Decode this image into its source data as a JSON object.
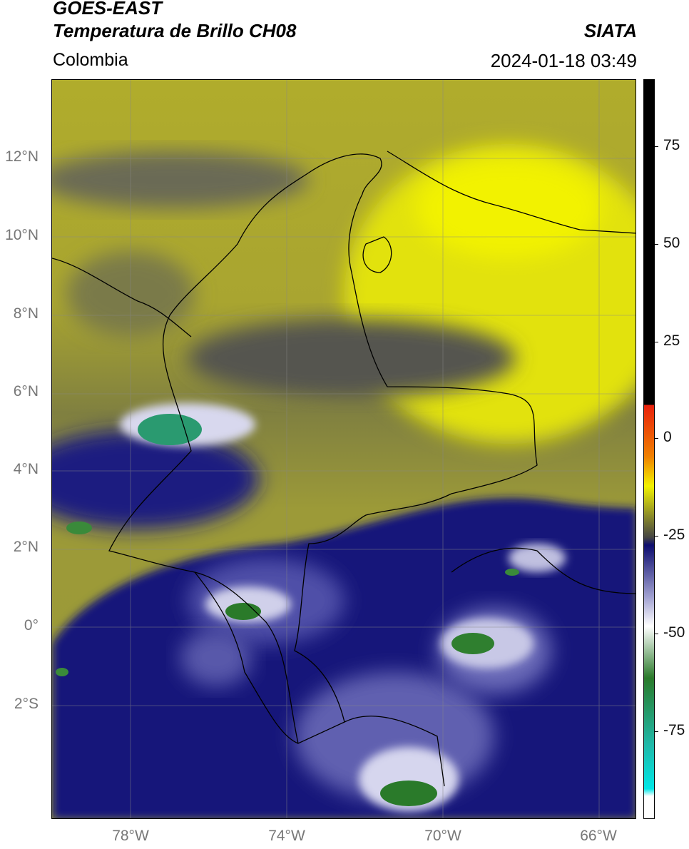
{
  "header": {
    "title_line1": "GOES-EAST",
    "title_line2": "Temperatura de Brillo CH08",
    "region": "Colombia",
    "source": "SIATA",
    "timestamp": "2024-01-18 03:49"
  },
  "map": {
    "lat_labels": [
      "12°N",
      "10°N",
      "8°N",
      "6°N",
      "4°N",
      "2°N",
      "0°",
      "2°S"
    ],
    "lon_labels": [
      "78°W",
      "74°W",
      "70°W",
      "66°W"
    ],
    "extent": {
      "lon_min": -80,
      "lon_max": -65,
      "lat_min": -5,
      "lat_max": 14
    }
  },
  "colorbar": {
    "tick_labels": [
      "75",
      "50",
      "25",
      "0",
      "-25",
      "-50",
      "-75"
    ],
    "range": [
      -95,
      90
    ],
    "colors": {
      "black": "#000000",
      "red": "#e8200c",
      "yellow": "#f2f200",
      "olive": "#8c8c28",
      "navy": "#0d0d6e",
      "lavender": "#a0a0d0",
      "white": "#ffffff",
      "green": "#2a7a2a",
      "teal": "#20b8a8",
      "cyan": "#00e6e6"
    }
  }
}
